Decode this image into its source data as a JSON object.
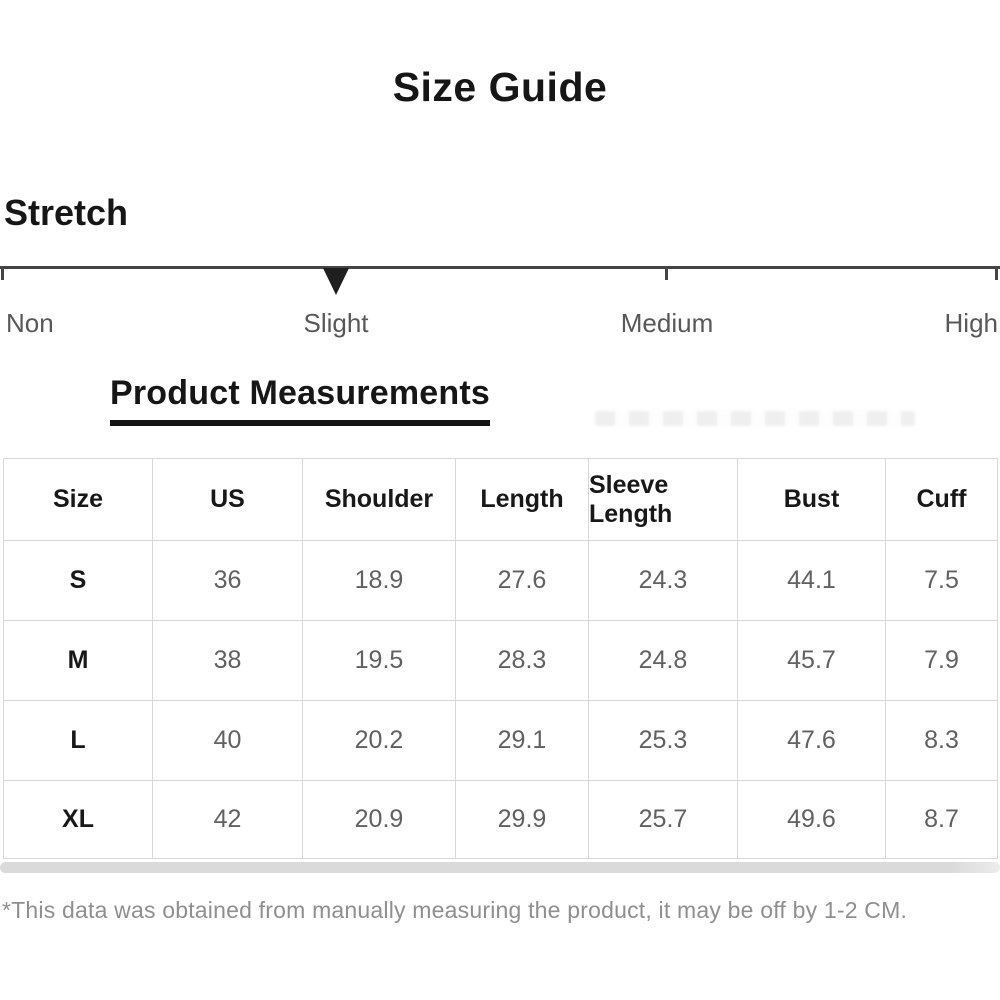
{
  "header": {
    "title": "Size Guide"
  },
  "stretch": {
    "section_label": "Stretch",
    "selected_level": "Slight",
    "levels": [
      {
        "label": "Non"
      },
      {
        "label": "Slight"
      },
      {
        "label": "Medium"
      },
      {
        "label": "High"
      }
    ]
  },
  "measurements": {
    "heading": "Product Measurements",
    "columns": [
      "Size",
      "US",
      "Shoulder",
      "Length",
      "Sleeve Length",
      "Bust",
      "Cuff"
    ],
    "rows": [
      [
        "S",
        "36",
        "18.9",
        "27.6",
        "24.3",
        "44.1",
        "7.5"
      ],
      [
        "M",
        "38",
        "19.5",
        "28.3",
        "24.8",
        "45.7",
        "7.9"
      ],
      [
        "L",
        "40",
        "20.2",
        "29.1",
        "25.3",
        "47.6",
        "8.3"
      ],
      [
        "XL",
        "42",
        "20.9",
        "29.9",
        "25.7",
        "49.6",
        "8.7"
      ]
    ],
    "footnote": "*This data was obtained from manually measuring the product, it may be off by 1-2 CM."
  },
  "colors": {
    "text_primary": "#161616",
    "text_values": "#616161",
    "text_muted": "#8f8f8f",
    "table_border": "#d8d8d8",
    "slider_line": "#454545",
    "marker": "#1e1e1e",
    "scrollbar": "#dadada"
  }
}
